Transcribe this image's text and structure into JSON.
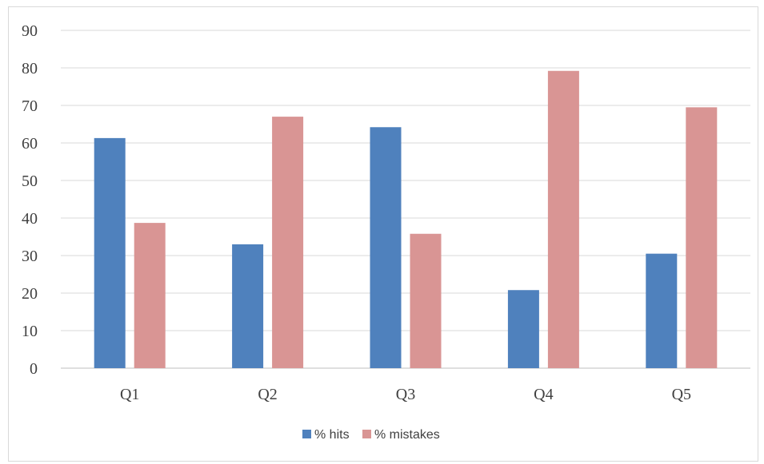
{
  "chart_data": {
    "type": "bar",
    "categories": [
      "Q1",
      "Q2",
      "Q3",
      "Q4",
      "Q5"
    ],
    "series": [
      {
        "name": "% hits",
        "values": [
          61.3,
          33.0,
          64.2,
          20.8,
          30.5
        ],
        "color": "#4f81bd"
      },
      {
        "name": "% mistakes",
        "values": [
          38.7,
          67.0,
          35.8,
          79.2,
          69.5
        ],
        "color": "#d99594"
      }
    ],
    "yticks": [
      "0",
      "10",
      "20",
      "30",
      "40",
      "50",
      "60",
      "70",
      "80",
      "90"
    ],
    "ylim": [
      0,
      90
    ],
    "grid": true,
    "legend_position": "bottom"
  }
}
